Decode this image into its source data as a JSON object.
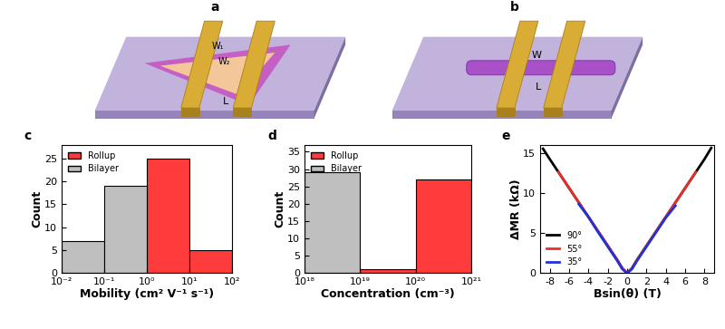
{
  "chart_data": [
    {
      "type": "histogram",
      "title": "c",
      "x_label": "Mobility (cm² V⁻¹ s⁻¹)",
      "y_label": "Count",
      "bins": [
        0.01,
        0.1,
        1,
        10,
        100
      ],
      "series": [
        {
          "name": "Rollup",
          "color": "#ff3b3b",
          "values": [
            null,
            null,
            25,
            5
          ]
        },
        {
          "name": "Bilayer",
          "color": "#bfbfbf",
          "values": [
            7,
            19,
            null,
            null
          ]
        }
      ],
      "xlim": [
        0.01,
        100
      ],
      "xticks": [
        {
          "value": 0.01,
          "label": "10⁻²"
        },
        {
          "value": 0.1,
          "label": "10⁻¹"
        },
        {
          "value": 1,
          "label": "10⁰"
        },
        {
          "value": 10,
          "label": "10¹"
        },
        {
          "value": 100,
          "label": "10²"
        }
      ],
      "ylim": [
        0,
        28
      ],
      "yticks": [
        0,
        5,
        10,
        15,
        20,
        25
      ],
      "log": "x",
      "legend": "upper left"
    },
    {
      "type": "histogram",
      "title": "d",
      "x_label": "Concentration (cm⁻³)",
      "y_label": "Count",
      "bins": [
        1e+18,
        1e+19,
        1e+20,
        1e+21
      ],
      "series": [
        {
          "name": "Rollup",
          "color": "#ff3b3b",
          "values": [
            null,
            1,
            27
          ]
        },
        {
          "name": "Bilayer",
          "color": "#bfbfbf",
          "values": [
            29,
            null,
            null
          ]
        }
      ],
      "xlim": [
        1e+18,
        1e+21
      ],
      "xticks": [
        {
          "value": 1e+18,
          "label": "10¹⁸"
        },
        {
          "value": 1e+19,
          "label": "10¹⁹"
        },
        {
          "value": 1e+20,
          "label": "10²⁰"
        },
        {
          "value": 1e+21,
          "label": "10²¹"
        }
      ],
      "ylim": [
        0,
        37
      ],
      "yticks": [
        0,
        5,
        10,
        15,
        20,
        25,
        30,
        35
      ],
      "log": "x",
      "legend": "upper left"
    },
    {
      "type": "line",
      "title": "e",
      "x_label": "Bsin(θ) (T)",
      "y_label": "ΔMR (kΩ)",
      "series": [
        {
          "name": "90°",
          "color": "#000000",
          "x": [
            -8.7,
            -8,
            -7,
            -6,
            -5,
            -4,
            -3,
            -2,
            -1,
            -0.5,
            0,
            0.5,
            1,
            2,
            3,
            4,
            5,
            6,
            7,
            8,
            8.7
          ],
          "values": [
            15.5,
            14.2,
            12.4,
            10.6,
            8.8,
            7.0,
            5.2,
            3.4,
            1.6,
            0.6,
            0.0,
            0.6,
            1.6,
            3.4,
            5.2,
            7.0,
            8.8,
            10.6,
            12.4,
            14.2,
            15.6
          ]
        },
        {
          "name": "55°",
          "color": "#e8302a",
          "x": [
            -7.1,
            -6,
            -5,
            -4,
            -3,
            -2,
            -1,
            -0.5,
            0,
            0.5,
            1,
            2,
            3,
            4,
            5,
            6,
            7.1
          ],
          "values": [
            12.6,
            10.6,
            8.8,
            7.0,
            5.2,
            3.4,
            1.6,
            0.6,
            0.0,
            0.6,
            1.6,
            3.4,
            5.2,
            7.0,
            8.8,
            10.6,
            12.6
          ]
        },
        {
          "name": "35°",
          "color": "#2431d6",
          "x": [
            -5,
            -4,
            -3,
            -2,
            -1,
            -0.5,
            0,
            0.5,
            1,
            2,
            3,
            4,
            5
          ],
          "values": [
            8.6,
            7.0,
            5.1,
            3.3,
            1.5,
            0.5,
            0.0,
            0.5,
            1.5,
            3.3,
            5.1,
            6.9,
            8.4
          ]
        }
      ],
      "xlim": [
        -9,
        9
      ],
      "xticks": [
        -8,
        -6,
        -4,
        -2,
        0,
        2,
        4,
        6,
        8
      ],
      "ylim": [
        0,
        16
      ],
      "yticks": [
        0,
        5,
        10,
        15
      ],
      "legend": "lower left"
    }
  ],
  "diagrams": [
    {
      "panel": "a",
      "labels": [
        "W₁",
        "W₂",
        "L"
      ]
    },
    {
      "panel": "b",
      "labels": [
        "W",
        "L"
      ]
    }
  ]
}
